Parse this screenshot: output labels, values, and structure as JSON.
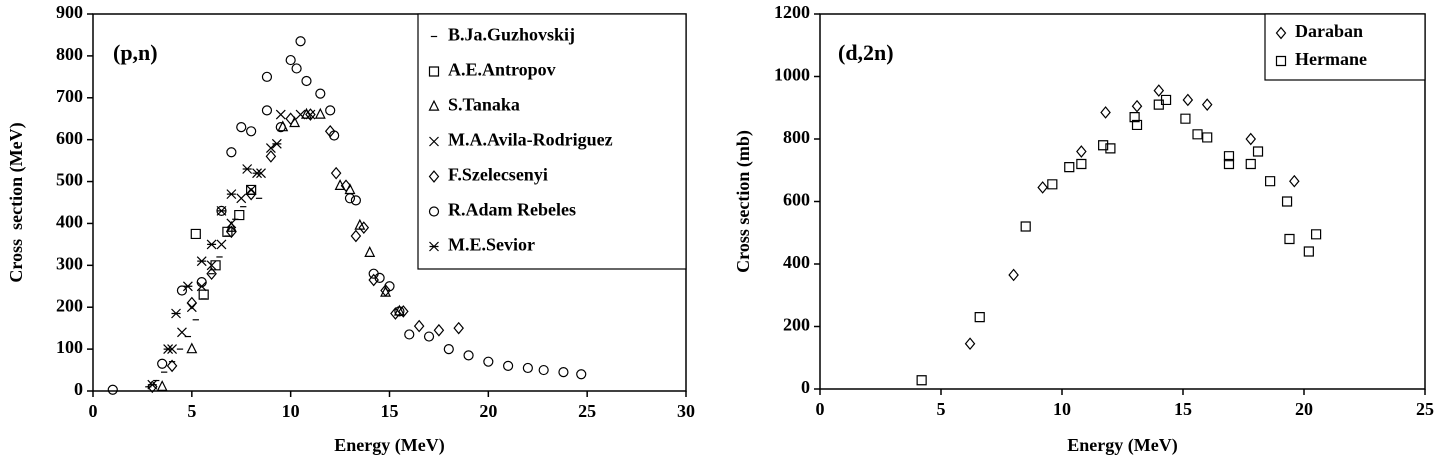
{
  "chart_data": [
    {
      "type": "scatter",
      "annotation": "(p,n)",
      "x_label": "Energy (MeV)",
      "y_label": "Cross  section (MeV)",
      "xlim": [
        0,
        30
      ],
      "xticks": [
        0,
        5,
        10,
        15,
        20,
        25,
        30
      ],
      "ylim": [
        0,
        900
      ],
      "yticks": [
        0,
        100,
        200,
        300,
        400,
        500,
        600,
        700,
        800,
        900
      ],
      "legend": "upper right",
      "series": [
        {
          "name": "B.Ja.Guzhovskij",
          "marker": "dash",
          "color": "#000000",
          "x": [
            2.8,
            3.2,
            3.6,
            4.0,
            4.4,
            4.8,
            5.2,
            5.6,
            6.0,
            6.4,
            6.8,
            7.2,
            7.6,
            8.0,
            8.4
          ],
          "values": [
            10,
            25,
            45,
            70,
            100,
            130,
            170,
            220,
            280,
            320,
            370,
            410,
            440,
            470,
            460
          ]
        },
        {
          "name": "A.E.Antropov",
          "marker": "square",
          "color": "#000000",
          "x": [
            5.2,
            5.6,
            6.2,
            6.8,
            7.4,
            8.0
          ],
          "values": [
            375,
            230,
            300,
            380,
            420,
            480
          ]
        },
        {
          "name": "S.Tanaka",
          "marker": "triangle",
          "color": "#000000",
          "x": [
            3.5,
            5.0,
            7.0,
            9.6,
            10.2,
            10.8,
            11.5,
            12.5,
            13.0,
            13.5,
            14.0,
            14.8,
            15.5
          ],
          "values": [
            10,
            100,
            390,
            630,
            640,
            660,
            660,
            490,
            480,
            395,
            330,
            235,
            190
          ]
        },
        {
          "name": "M.A.Avila-Rodriguez",
          "marker": "x",
          "color": "#000000",
          "x": [
            4.0,
            4.5,
            5.0,
            5.5,
            6.0,
            6.5,
            7.0,
            7.5,
            8.0,
            8.5,
            9.0,
            9.5,
            10.5,
            11.0
          ],
          "values": [
            100,
            140,
            200,
            250,
            300,
            350,
            400,
            460,
            480,
            520,
            580,
            660,
            660,
            660
          ]
        },
        {
          "name": "F.Szelecsenyi",
          "marker": "diamond",
          "color": "#000000",
          "x": [
            3,
            4,
            5,
            6,
            7,
            8,
            9,
            10,
            11,
            12,
            12.3,
            12.8,
            13.3,
            13.7,
            14.2,
            14.8,
            15.3,
            15.7,
            16.5,
            17.5,
            18.5
          ],
          "values": [
            10,
            60,
            210,
            280,
            380,
            470,
            560,
            650,
            660,
            620,
            520,
            490,
            370,
            390,
            265,
            240,
            185,
            190,
            155,
            145,
            150
          ]
        },
        {
          "name": "R.Adam Rebeles",
          "marker": "circle",
          "color": "#000000",
          "x": [
            1.0,
            3.5,
            4.5,
            5.5,
            6.5,
            7.0,
            7.5,
            8.0,
            8.8,
            8.8,
            9.5,
            10.0,
            10.5,
            10.3,
            10.8,
            11.5,
            12.0,
            12.2,
            13.0,
            13.3,
            14.2,
            14.5,
            15.0,
            15.5,
            16.0,
            17.0,
            18.0,
            19.0,
            20.0,
            21.0,
            22.0,
            22.8,
            23.8,
            24.7
          ],
          "values": [
            3,
            65,
            240,
            260,
            430,
            570,
            630,
            620,
            750,
            670,
            630,
            790,
            835,
            770,
            740,
            710,
            670,
            610,
            460,
            455,
            280,
            270,
            250,
            190,
            135,
            130,
            100,
            85,
            70,
            60,
            55,
            50,
            45,
            40
          ]
        },
        {
          "name": "M.E.Sevior",
          "marker": "asterisk",
          "color": "#000000",
          "x": [
            3.0,
            3.8,
            4.2,
            4.8,
            5.5,
            6.0,
            6.5,
            7.0,
            7.8,
            8.3,
            9.3
          ],
          "values": [
            15,
            100,
            185,
            250,
            310,
            350,
            430,
            470,
            530,
            520,
            590
          ]
        }
      ]
    },
    {
      "type": "scatter",
      "annotation": "(d,2n)",
      "x_label": "Energy (MeV)",
      "y_label": "Cross section (mb)",
      "xlim": [
        0,
        25
      ],
      "xticks": [
        0,
        5,
        10,
        15,
        20,
        25
      ],
      "ylim": [
        0,
        1200
      ],
      "yticks": [
        0,
        200,
        400,
        600,
        800,
        1000,
        1200
      ],
      "legend": "upper right",
      "series": [
        {
          "name": "Daraban",
          "marker": "diamond",
          "color": "#000000",
          "x": [
            6.2,
            8.0,
            9.2,
            10.8,
            11.8,
            13.1,
            14.0,
            15.2,
            16.0,
            17.8,
            19.6
          ],
          "values": [
            145,
            365,
            645,
            760,
            885,
            905,
            955,
            925,
            910,
            800,
            665
          ]
        },
        {
          "name": "Hermane",
          "marker": "square",
          "color": "#000000",
          "x": [
            4.2,
            6.6,
            8.5,
            9.6,
            10.3,
            10.8,
            11.7,
            12.0,
            13.0,
            13.1,
            14.0,
            14.3,
            15.1,
            15.6,
            16.0,
            16.9,
            16.9,
            17.8,
            18.1,
            18.6,
            19.3,
            19.4,
            20.2,
            20.5
          ],
          "values": [
            28,
            230,
            520,
            655,
            710,
            720,
            780,
            770,
            870,
            845,
            910,
            925,
            865,
            815,
            805,
            745,
            720,
            720,
            760,
            665,
            600,
            480,
            440,
            495
          ]
        }
      ]
    }
  ]
}
